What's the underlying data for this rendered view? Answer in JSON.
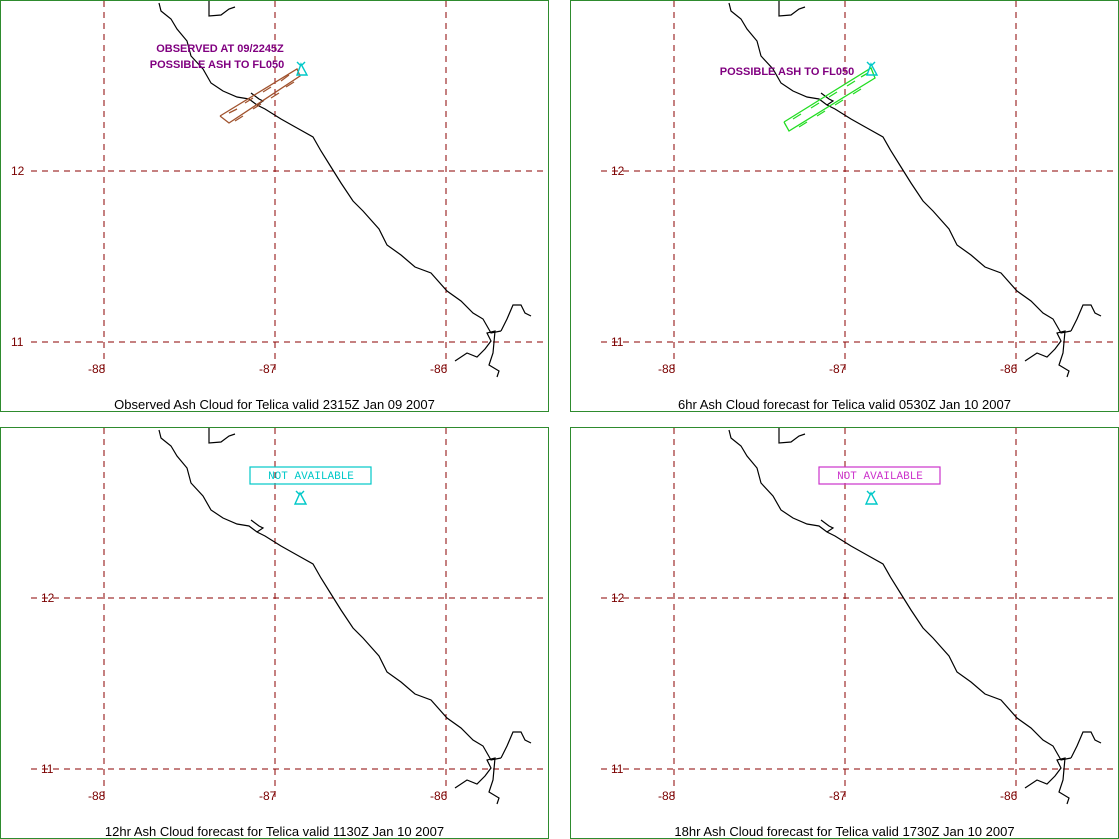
{
  "colors": {
    "border": "#2e8b2e",
    "grid": "#8b0000",
    "coast": "#000000",
    "annotation": "#800080",
    "volcano": "#00c8c8",
    "observed_cloud": "#a0522d",
    "forecast_cloud_6hr": "#22dd22",
    "na_12hr": "#00c8c8",
    "na_18hr": "#cc33cc"
  },
  "axes": {
    "lat_ticks": [
      "12",
      "11"
    ],
    "lon_ticks": [
      "-88",
      "-87",
      "-86"
    ]
  },
  "panels": [
    {
      "id": "observed",
      "caption": "Observed Ash Cloud for Telica valid 2315Z Jan 09 2007",
      "annotation_lines": [
        "OBSERVED AT 09/2245Z",
        "POSSIBLE ASH TO FL050"
      ],
      "not_available": ""
    },
    {
      "id": "fcst6",
      "caption": "6hr Ash Cloud forecast for Telica valid 0530Z Jan 10 2007",
      "annotation_lines": [
        "POSSIBLE ASH TO FL050"
      ],
      "not_available": ""
    },
    {
      "id": "fcst12",
      "caption": "12hr Ash Cloud forecast for Telica valid 1130Z Jan 10 2007",
      "annotation_lines": [],
      "not_available": "NOT AVAILABLE"
    },
    {
      "id": "fcst18",
      "caption": "18hr Ash Cloud forecast for Telica valid 1730Z Jan 10 2007",
      "annotation_lines": [],
      "not_available": "NOT AVAILABLE"
    }
  ]
}
